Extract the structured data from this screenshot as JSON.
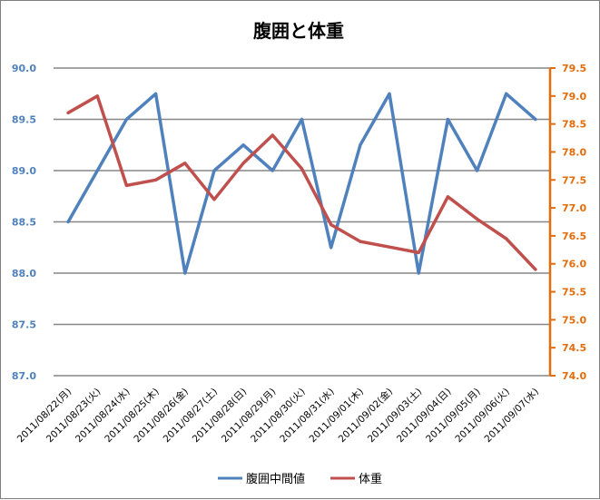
{
  "chart_data": {
    "type": "line",
    "title": "腹囲と体重",
    "categories": [
      "2011/08/22(月)",
      "2011/08/23(火)",
      "2011/08/24(水)",
      "2011/08/25(木)",
      "2011/08/26(金)",
      "2011/08/27(土)",
      "2011/08/28(日)",
      "2011/08/29(月)",
      "2011/08/30(火)",
      "2011/08/31(水)",
      "2011/09/01(木)",
      "2011/09/02(金)",
      "2011/09/03(土)",
      "2011/09/04(日)",
      "2011/09/05(月)",
      "2011/09/06(火)",
      "2011/09/07(水)"
    ],
    "series": [
      {
        "name": "腹囲中間値",
        "axis": "left",
        "color": "#4f81bd",
        "values": [
          88.5,
          89.0,
          89.5,
          89.75,
          88.0,
          89.0,
          89.25,
          89.0,
          89.5,
          88.25,
          89.25,
          89.75,
          88.0,
          89.5,
          89.0,
          89.75,
          89.5
        ]
      },
      {
        "name": "体重",
        "axis": "right",
        "color": "#c0504d",
        "values": [
          78.7,
          79.0,
          77.4,
          77.5,
          77.8,
          77.15,
          77.8,
          78.3,
          77.7,
          76.7,
          76.4,
          76.3,
          76.2,
          77.2,
          76.8,
          76.45,
          75.9
        ]
      }
    ],
    "y_left": {
      "ylim": [
        87.0,
        90.0
      ],
      "ticks": [
        "90.0",
        "89.5",
        "89.0",
        "88.5",
        "88.0",
        "87.5",
        "87.0"
      ],
      "color": "#4f81bd"
    },
    "y_right": {
      "ylim": [
        74.0,
        79.5
      ],
      "ticks": [
        "79.5",
        "79.0",
        "78.5",
        "78.0",
        "77.5",
        "77.0",
        "76.5",
        "76.0",
        "75.5",
        "75.0",
        "74.5",
        "74.0"
      ],
      "color": "#e46c0a"
    },
    "grid": true,
    "legend_position": "bottom"
  }
}
